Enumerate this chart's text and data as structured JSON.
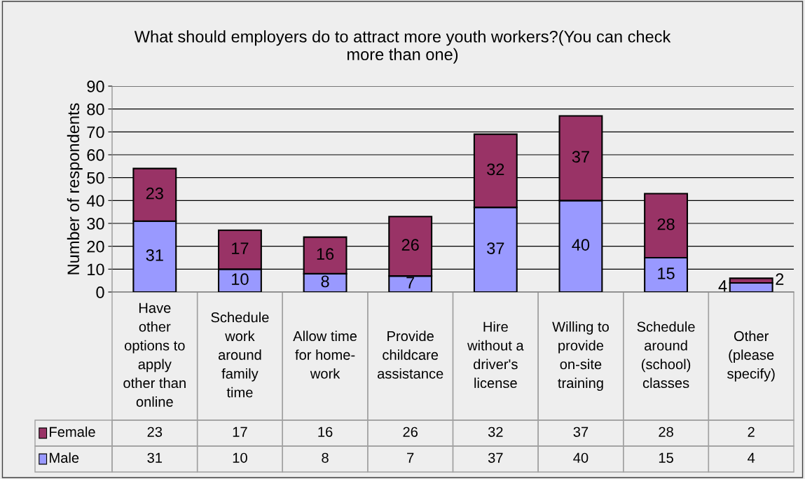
{
  "chart_data": {
    "type": "bar",
    "stacked": true,
    "title": "What should employers do to attract more youth workers?(You can check\nmore than one)",
    "ylabel": "Number of respondents",
    "categories": [
      "Have\nother\noptions to\napply\nother than\nonline",
      "Schedule\nwork\naround\nfamily\ntime",
      "Allow time\nfor home-\nwork",
      "Provide\nchildcare\nassistance",
      "Hire\nwithout a\ndriver's\nlicense",
      "Willing to\nprovide\non-site\ntraining",
      "Schedule\naround\n(school)\nclasses",
      "Other\n(please\nspecify)"
    ],
    "series": [
      {
        "name": "Male",
        "color": "#9999ff",
        "values": [
          31,
          10,
          8,
          7,
          37,
          40,
          15,
          4
        ],
        "value_labels": [
          "31",
          "10",
          "8",
          "7",
          "37",
          "40",
          "15",
          "4"
        ]
      },
      {
        "name": "Female",
        "color": "#993366",
        "values": [
          23,
          17,
          16,
          26,
          32,
          37,
          28,
          2
        ],
        "value_labels": [
          "23",
          "17",
          "16",
          "26",
          "32",
          "37",
          "28",
          "2"
        ]
      }
    ],
    "ylim": [
      0,
      90
    ],
    "yticks": [
      0,
      10,
      20,
      30,
      40,
      50,
      60,
      70,
      80,
      90
    ],
    "grid": "y",
    "annotations": [
      "23",
      "17",
      "16",
      "26",
      "32",
      "37",
      "28",
      "2",
      "31",
      "10",
      "8",
      "7",
      "37",
      "40",
      "15",
      "4"
    ],
    "legend": "bottom"
  }
}
